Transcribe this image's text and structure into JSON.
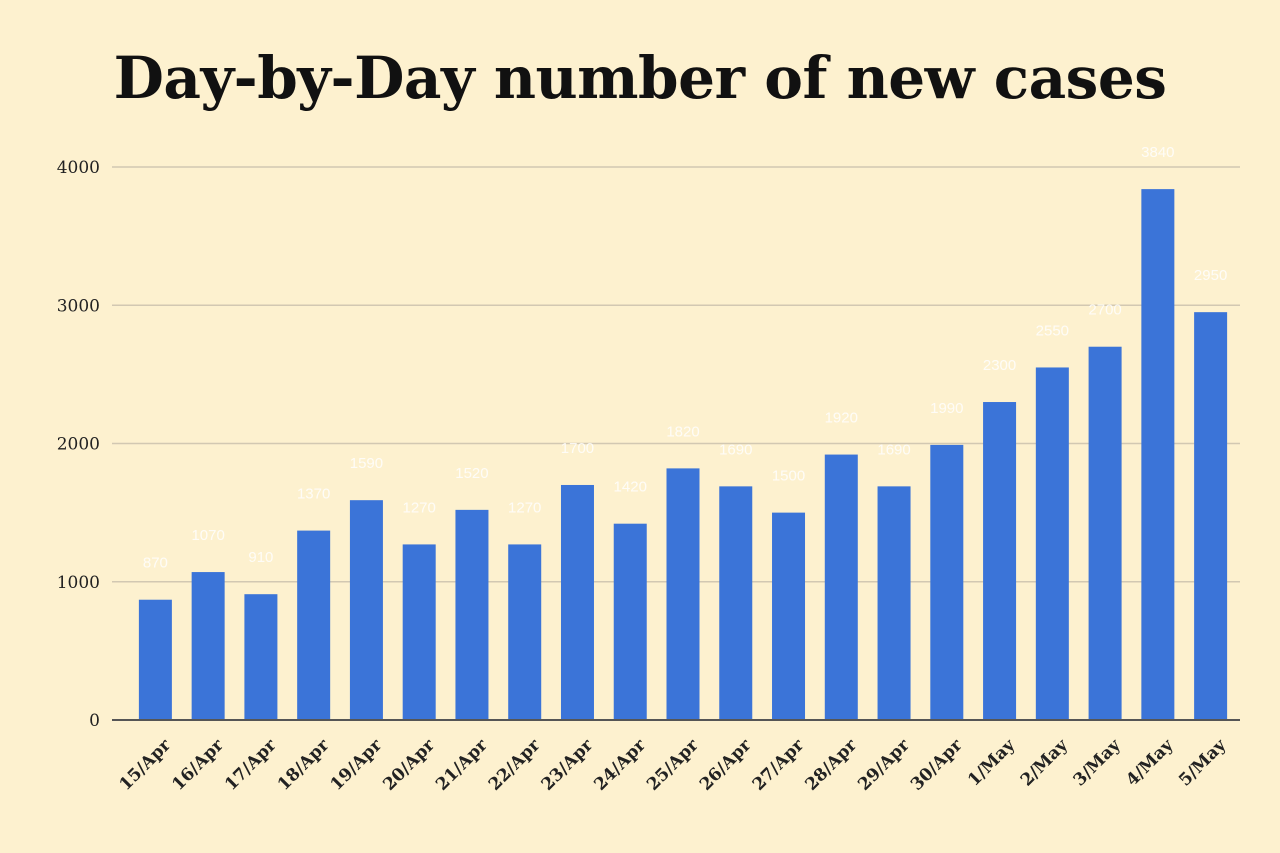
{
  "colors": {
    "background": "#fdf1cf",
    "bar": "#3b74d8",
    "grid": "#d2c8b2",
    "axis": "#555555"
  },
  "chart_data": {
    "type": "bar",
    "title": "Day-by-Day number of new cases",
    "xlabel": "",
    "ylabel": "",
    "ylim": [
      0,
      4000
    ],
    "yticks": [
      0,
      1000,
      2000,
      3000,
      4000
    ],
    "grid": true,
    "categories": [
      "15/Apr",
      "16/Apr",
      "17/Apr",
      "18/Apr",
      "19/Apr",
      "20/Apr",
      "21/Apr",
      "22/Apr",
      "23/Apr",
      "24/Apr",
      "25/Apr",
      "26/Apr",
      "27/Apr",
      "28/Apr",
      "29/Apr",
      "30/Apr",
      "1/May",
      "2/May",
      "3/May",
      "4/May",
      "5/May"
    ],
    "values": [
      870,
      1070,
      910,
      1370,
      1590,
      1270,
      1520,
      1270,
      1700,
      1420,
      1820,
      1690,
      1500,
      1920,
      1690,
      1990,
      2300,
      2550,
      2700,
      3840,
      2950
    ]
  }
}
